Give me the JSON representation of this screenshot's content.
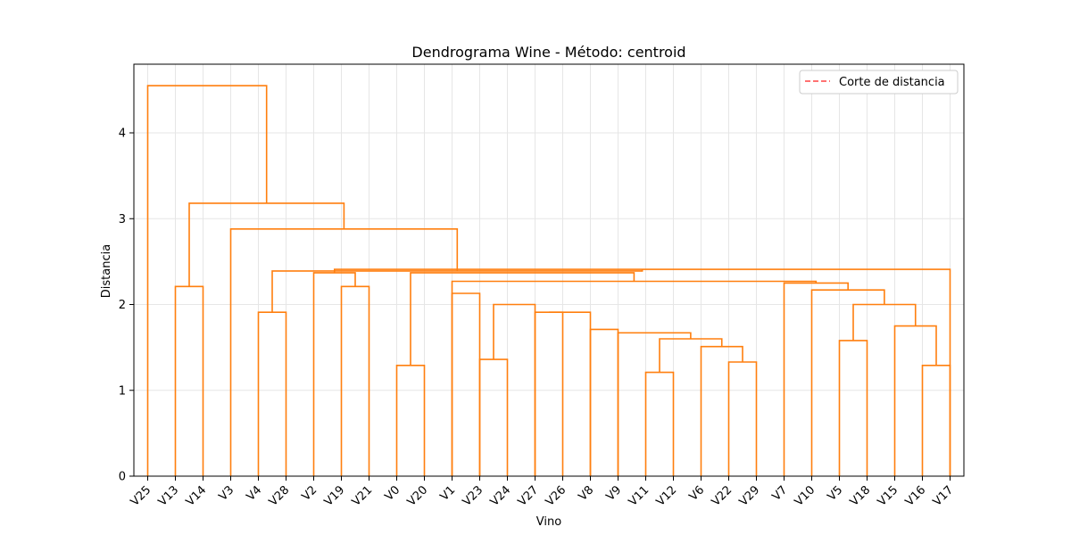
{
  "chart_data": {
    "type": "dendrogram",
    "title": "Dendrograma Wine - Método: centroid",
    "xlabel": "Vino",
    "ylabel": "Distancia",
    "ylim": [
      0,
      4.8
    ],
    "yticks": [
      0,
      1,
      2,
      3,
      4
    ],
    "grid": true,
    "legend": {
      "placement": "top-right",
      "entries": [
        {
          "label": "Corte de distancia",
          "color": "#ff4444",
          "style": "dashed"
        }
      ]
    },
    "link_color": "#ff7f0e",
    "leaves": [
      "V25",
      "V13",
      "V14",
      "V3",
      "V4",
      "V28",
      "V2",
      "V19",
      "V21",
      "V0",
      "V20",
      "V1",
      "V23",
      "V24",
      "V27",
      "V26",
      "V8",
      "V9",
      "V11",
      "V12",
      "V6",
      "V22",
      "V29",
      "V7",
      "V10",
      "V5",
      "V18",
      "V15",
      "V16",
      "V17"
    ],
    "merges": [
      {
        "left": "V13",
        "right": "V14",
        "height": 2.21
      },
      {
        "left": "V4",
        "right": "V28",
        "height": 1.91
      },
      {
        "left": "V19",
        "right": "V21",
        "height": 2.21
      },
      {
        "left": "V0",
        "right": "V20",
        "height": 1.29
      },
      {
        "left": "V23",
        "right": "V24",
        "height": 1.36
      },
      {
        "left": "V27",
        "right": "V26",
        "height": 1.91
      },
      {
        "left": "V8",
        "right": "V9",
        "height": 1.71
      },
      {
        "left": "V11",
        "right": "V12",
        "height": 1.21
      },
      {
        "left": "V22",
        "right": "V29",
        "height": 1.33
      },
      {
        "left": "V5",
        "right": "V18",
        "height": 1.58
      },
      {
        "left": "V16",
        "right": "V17",
        "height": 1.29
      },
      {
        "left": "V6",
        "right": "V22-V29",
        "height": 1.51
      },
      {
        "left": "V11-V12",
        "right": "V6-V22-V29",
        "height": 1.6
      },
      {
        "left": "V9",
        "right": "V11-V12-V6-V22-V29",
        "height": 1.67
      },
      {
        "left": "V27-V26",
        "right": "V8-V9-V11-V12-V6-V22-V29",
        "height": 1.91
      },
      {
        "left": "V23-V24",
        "right": "V27..V29",
        "height": 2.0
      },
      {
        "left": "V1",
        "right": "V23..V29",
        "height": 2.13
      },
      {
        "left": "V15",
        "right": "V16-V17",
        "height": 1.75
      },
      {
        "left": "V5-V18",
        "right": "V15-V16-V17",
        "height": 2.0
      },
      {
        "left": "V10",
        "right": "V5..V17",
        "height": 2.17
      },
      {
        "left": "V7",
        "right": "V10..V17",
        "height": 2.25
      },
      {
        "left": "V1..V29",
        "right": "V7..V17",
        "height": 2.27
      },
      {
        "left": "V2",
        "right": "V19-V21",
        "height": 2.37
      },
      {
        "left": "V0-V20",
        "right": "V1..V17",
        "height": 2.37
      },
      {
        "left": "V2-V19-V21",
        "right": "V0-V20-V1..V17",
        "height": 2.41
      },
      {
        "left": "V4-V28",
        "right": "V2..V17",
        "height": 2.39
      },
      {
        "left": "V3",
        "right": "V4..V17",
        "height": 2.88
      },
      {
        "left": "V13-V14",
        "right": "V3..V17",
        "height": 3.18
      },
      {
        "left": "V25",
        "right": "V13..V17",
        "height": 4.55
      }
    ]
  }
}
